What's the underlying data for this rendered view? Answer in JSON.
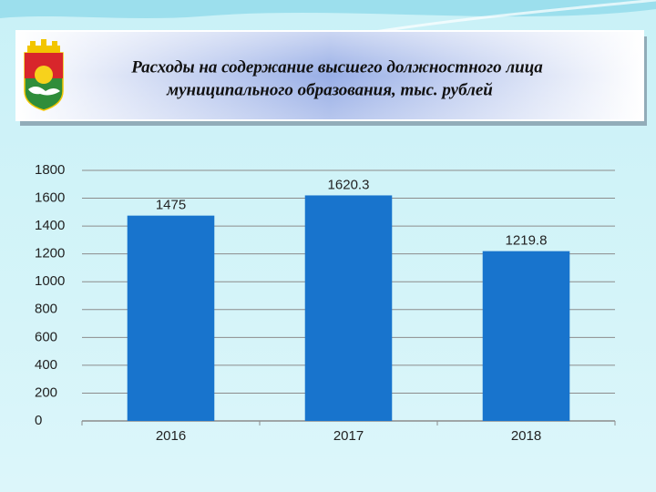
{
  "chart_data": {
    "type": "bar",
    "title": [
      "Расходы на содержание высшего должностного лица",
      "муниципального образования, тыс. рублей"
    ],
    "categories": [
      "2016",
      "2017",
      "2018"
    ],
    "values": [
      1475,
      1620.3,
      1219.8
    ],
    "color": "#1874cd",
    "ylim": [
      0,
      1800
    ],
    "yticks": [
      0,
      200,
      400,
      600,
      800,
      1000,
      1200,
      1400,
      1600,
      1800
    ],
    "grid": true
  }
}
